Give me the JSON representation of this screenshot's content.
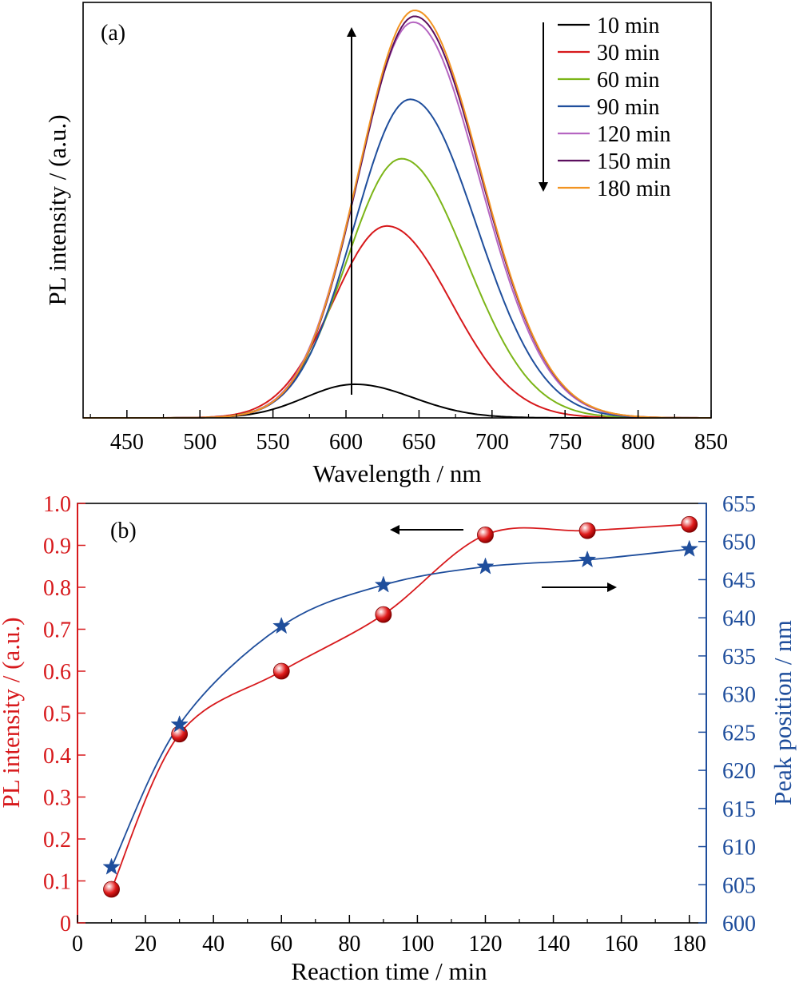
{
  "chart_data": [
    {
      "panel_label": "(a)",
      "type": "line",
      "xlabel": "Wavelength / nm",
      "ylabel": "PL intensity / (a.u.)",
      "xlim": [
        420,
        850
      ],
      "ylim": [
        0,
        1.05
      ],
      "xticks": [
        "450",
        "500",
        "550",
        "600",
        "650",
        "700",
        "750",
        "800",
        "850"
      ],
      "y_tick_labels_shown": false,
      "legend_position": "top-right",
      "annotations": [
        "upward arrow at ~605 nm indicating increasing intensity",
        "downward arrow beside legend"
      ],
      "series": [
        {
          "name": "10 min",
          "color": "#000000",
          "peak_wavelength": 606,
          "peak_value": 0.085,
          "width_left": 48,
          "width_right": 56
        },
        {
          "name": "30 min",
          "color": "#d7191c",
          "peak_wavelength": 628,
          "peak_value": 0.485,
          "width_left": 52,
          "width_right": 62
        },
        {
          "name": "60 min",
          "color": "#7cb518",
          "peak_wavelength": 638,
          "peak_value": 0.655,
          "width_left": 53,
          "width_right": 63
        },
        {
          "name": "90 min",
          "color": "#1f4e9c",
          "peak_wavelength": 644,
          "peak_value": 0.805,
          "width_left": 54,
          "width_right": 64
        },
        {
          "name": "120 min",
          "color": "#b565c1",
          "peak_wavelength": 646,
          "peak_value": 1.0,
          "width_left": 54,
          "width_right": 64
        },
        {
          "name": "150 min",
          "color": "#5b0f5e",
          "peak_wavelength": 647,
          "peak_value": 1.015,
          "width_left": 54,
          "width_right": 64
        },
        {
          "name": "180 min",
          "color": "#f29422",
          "peak_wavelength": 647,
          "peak_value": 1.03,
          "width_left": 54,
          "width_right": 64
        }
      ]
    },
    {
      "panel_label": "(b)",
      "type": "scatter",
      "xlabel": "Reaction time / min",
      "ylabel_left": "PL intensity / (a.u.)",
      "ylabel_right": "Peak position / nm",
      "xlim": [
        0,
        185
      ],
      "ylim_left": [
        0,
        1.0
      ],
      "ylim_right": [
        600,
        655
      ],
      "xticks": [
        "0",
        "20",
        "40",
        "60",
        "80",
        "100",
        "120",
        "140",
        "160",
        "180"
      ],
      "yticks_left": [
        "0",
        "0.1",
        "0.2",
        "0.3",
        "0.4",
        "0.5",
        "0.6",
        "0.7",
        "0.8",
        "0.9",
        "1.0"
      ],
      "yticks_right": [
        "600",
        "605",
        "610",
        "615",
        "620",
        "625",
        "630",
        "635",
        "640",
        "645",
        "650",
        "655"
      ],
      "left_color": "#d7191c",
      "right_color": "#1f4e9c",
      "annotations": [
        "left-pointing arrow near upper middle",
        "right-pointing arrow near (140, 0.8)"
      ],
      "series": [
        {
          "name": "PL intensity",
          "axis": "left",
          "marker": "sphere",
          "color": "#d7191c",
          "x": [
            10,
            30,
            60,
            90,
            120,
            150,
            180
          ],
          "y": [
            0.08,
            0.45,
            0.6,
            0.735,
            0.925,
            0.935,
            0.95
          ]
        },
        {
          "name": "Peak position",
          "axis": "right",
          "marker": "star",
          "color": "#1f4e9c",
          "x": [
            10,
            30,
            60,
            90,
            120,
            150,
            180
          ],
          "y": [
            607.3,
            626.0,
            638.9,
            644.3,
            646.7,
            647.6,
            649.0
          ]
        }
      ]
    }
  ]
}
